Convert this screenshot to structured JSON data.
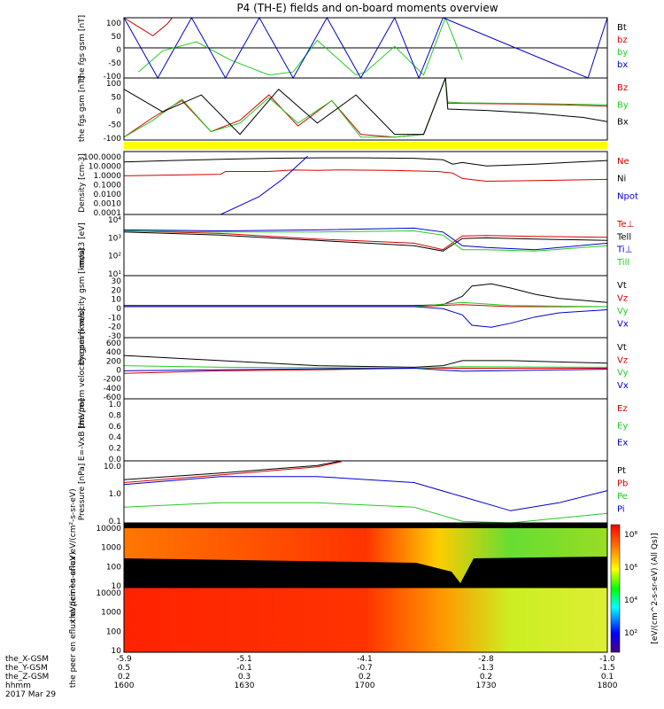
{
  "title": "P4 (TH-E) fields and on-board moments overview",
  "colors": {
    "black": "#000000",
    "red": "#d40000",
    "green": "#22cc22",
    "blue": "#0000cc",
    "yellow": "#ffff00"
  },
  "chart_data": [
    {
      "type": "line",
      "ylabel": "the fgs gsm [nT]",
      "ylim": [
        -100,
        100
      ],
      "yticks": [
        "100",
        "50",
        "0",
        "-50",
        "-100"
      ],
      "series": [
        {
          "name": "Bt",
          "color": "black",
          "x": [
            0,
            1
          ],
          "values": [
            0,
            0
          ]
        },
        {
          "name": "bz",
          "color": "red",
          "x": [
            0,
            0.02,
            0.04,
            0.06,
            0.09,
            0.1
          ],
          "values": [
            100,
            80,
            60,
            40,
            80,
            100
          ]
        },
        {
          "name": "by",
          "color": "green",
          "x": [
            0.03,
            0.08,
            0.15,
            0.22,
            0.3,
            0.35,
            0.4,
            0.48,
            0.5,
            0.56,
            0.62,
            0.665,
            0.7
          ],
          "values": [
            -80,
            -10,
            20,
            -40,
            -90,
            -80,
            25,
            -90,
            -80,
            5,
            -90,
            100,
            -40
          ]
        },
        {
          "name": "bx",
          "color": "blue",
          "x": [
            0,
            0.07,
            0.14,
            0.21,
            0.28,
            0.35,
            0.42,
            0.49,
            0.56,
            0.61,
            0.66,
            0.96,
            1.0
          ],
          "values": [
            100,
            -100,
            100,
            -100,
            100,
            -100,
            100,
            -100,
            100,
            -100,
            100,
            -100,
            100
          ]
        }
      ]
    },
    {
      "type": "line",
      "ylabel": "the fgs gsm [nT]",
      "ylim": [
        -120,
        100
      ],
      "yticks": [
        "100",
        "50",
        "0",
        "-50",
        "-100"
      ],
      "series": [
        {
          "name": "Bz",
          "color": "red",
          "x": [
            0,
            0.06,
            0.12,
            0.18,
            0.24,
            0.3,
            0.36,
            0.43,
            0.49,
            0.56,
            0.62,
            0.665,
            0.67,
            0.7,
            0.8,
            0.9,
            1.0
          ],
          "values": [
            -110,
            -40,
            20,
            -90,
            -50,
            40,
            -70,
            20,
            -100,
            -110,
            -100,
            100,
            10,
            10,
            8,
            5,
            0
          ]
        },
        {
          "name": "By",
          "color": "green",
          "x": [
            0,
            0.06,
            0.12,
            0.18,
            0.24,
            0.3,
            0.36,
            0.43,
            0.49,
            0.56,
            0.62,
            0.665,
            0.67,
            0.7,
            0.8,
            0.9,
            1.0
          ],
          "values": [
            -110,
            -50,
            25,
            -90,
            -60,
            30,
            -60,
            20,
            -110,
            -110,
            -100,
            100,
            15,
            12,
            10,
            8,
            5
          ]
        },
        {
          "name": "Bx",
          "color": "black",
          "x": [
            0,
            0.08,
            0.16,
            0.24,
            0.32,
            0.4,
            0.48,
            0.56,
            0.62,
            0.665,
            0.67,
            0.75,
            0.85,
            0.95,
            1.0
          ],
          "values": [
            60,
            -20,
            40,
            -100,
            60,
            -60,
            40,
            -100,
            -100,
            100,
            -10,
            -15,
            -25,
            -40,
            -55
          ]
        }
      ]
    },
    {
      "type": "line",
      "ylabel": "Density [cm-3]",
      "scale": "log",
      "ylim": [
        0.0001,
        1000
      ],
      "yticks": [
        "100.0000",
        "10.0000",
        "1.0000",
        "0.1000",
        "0.0100",
        "0.0010",
        "0.0001"
      ],
      "series": [
        {
          "name": "Ne",
          "color": "red",
          "x": [
            0,
            0.2,
            0.21,
            0.3,
            0.35,
            0.4,
            0.45,
            0.55,
            0.65,
            0.68,
            0.7,
            0.75,
            0.85,
            1.0
          ],
          "values": [
            2,
            3,
            6,
            6,
            9,
            8,
            9,
            8,
            6,
            4,
            1,
            0.5,
            0.6,
            0.8
          ]
        },
        {
          "name": "Ni",
          "color": "black",
          "x": [
            0,
            0.1,
            0.2,
            0.3,
            0.4,
            0.5,
            0.6,
            0.66,
            0.68,
            0.7,
            0.75,
            0.85,
            1.0
          ],
          "values": [
            70,
            100,
            140,
            180,
            200,
            200,
            180,
            120,
            40,
            60,
            25,
            40,
            100
          ]
        },
        {
          "name": "Npot",
          "color": "blue",
          "x": [
            0,
            0.15,
            0.2,
            0.28,
            0.33,
            0.38
          ],
          "values": [
            0.0001,
            0.0001,
            0.0001,
            0.01,
            1,
            300
          ]
        }
      ]
    },
    {
      "type": "line",
      "ylabel": "moat3 [eV]",
      "scale": "log",
      "ylim": [
        10,
        30000
      ],
      "yticks": [
        "10⁴",
        "10³",
        "10²",
        "10¹"
      ],
      "series": [
        {
          "name": "Te⊥",
          "color": "red",
          "x": [
            0,
            0.2,
            0.4,
            0.6,
            0.66,
            0.7,
            0.75,
            0.85,
            1.0
          ],
          "values": [
            3500,
            2500,
            1200,
            700,
            300,
            1800,
            1900,
            1700,
            1500
          ]
        },
        {
          "name": "Tell",
          "color": "black",
          "x": [
            0,
            0.2,
            0.4,
            0.6,
            0.66,
            0.7,
            0.75,
            0.85,
            1.0
          ],
          "values": [
            3000,
            2000,
            1000,
            500,
            250,
            1300,
            1400,
            1200,
            1000
          ]
        },
        {
          "name": "Ti⊥",
          "color": "blue",
          "x": [
            0,
            0.2,
            0.4,
            0.6,
            0.66,
            0.7,
            0.75,
            0.85,
            1.0
          ],
          "values": [
            4000,
            3500,
            4000,
            5000,
            3000,
            500,
            400,
            300,
            700
          ]
        },
        {
          "name": "Till",
          "color": "green",
          "x": [
            0,
            0.2,
            0.4,
            0.6,
            0.66,
            0.7,
            0.75,
            0.85,
            1.0
          ],
          "values": [
            3500,
            3000,
            3000,
            3500,
            2000,
            300,
            300,
            250,
            500
          ]
        }
      ]
    },
    {
      "type": "line",
      "ylabel": "the peim velocity gsm [km/s]",
      "ylim": [
        -30,
        30
      ],
      "yticks": [
        "30",
        "20",
        "10",
        "0",
        "-10",
        "-20",
        "-30"
      ],
      "series": [
        {
          "name": "Vt",
          "color": "black",
          "x": [
            0,
            0.6,
            0.66,
            0.7,
            0.72,
            0.76,
            0.8,
            0.85,
            0.9,
            1.0
          ],
          "values": [
            1,
            1,
            2,
            10,
            20,
            22,
            18,
            12,
            8,
            4
          ]
        },
        {
          "name": "Vz",
          "color": "red",
          "x": [
            0,
            0.6,
            0.7,
            0.8,
            1.0
          ],
          "values": [
            0,
            0,
            2,
            0,
            0
          ]
        },
        {
          "name": "Vy",
          "color": "green",
          "x": [
            0,
            0.6,
            0.7,
            0.8,
            1.0
          ],
          "values": [
            0,
            0,
            4,
            1,
            0
          ]
        },
        {
          "name": "Vx",
          "color": "blue",
          "x": [
            0,
            0.6,
            0.66,
            0.7,
            0.72,
            0.76,
            0.8,
            0.85,
            0.9,
            1.0
          ],
          "values": [
            0,
            0,
            -2,
            -8,
            -18,
            -20,
            -16,
            -10,
            -6,
            -3
          ]
        }
      ]
    },
    {
      "type": "line",
      "ylabel": "the peem velocity gsm [km/s]",
      "ylim": [
        -600,
        600
      ],
      "yticks": [
        "600",
        "400",
        "200",
        "0",
        "-200",
        "-400",
        "-600"
      ],
      "series": [
        {
          "name": "Vt",
          "color": "black",
          "x": [
            0,
            0.2,
            0.4,
            0.6,
            0.66,
            0.7,
            0.8,
            1.0
          ],
          "values": [
            250,
            150,
            50,
            20,
            50,
            150,
            150,
            100
          ]
        },
        {
          "name": "Vz",
          "color": "red",
          "x": [
            0,
            0.2,
            0.4,
            0.6,
            0.7,
            1.0
          ],
          "values": [
            -100,
            -50,
            -30,
            0,
            0,
            0
          ]
        },
        {
          "name": "Vy",
          "color": "green",
          "x": [
            0,
            0.2,
            0.4,
            0.6,
            0.7,
            1.0
          ],
          "values": [
            50,
            20,
            10,
            0,
            30,
            20
          ]
        },
        {
          "name": "Vx",
          "color": "blue",
          "x": [
            0,
            0.2,
            0.4,
            0.6,
            0.7,
            1.0
          ],
          "values": [
            -50,
            -30,
            -10,
            0,
            -60,
            -20
          ]
        }
      ]
    },
    {
      "type": "line",
      "ylabel": "E=-VxB [mV/m]",
      "ylim": [
        0,
        1
      ],
      "yticks": [
        "1.0",
        "0.8",
        "0.6",
        "0.4",
        "0.2",
        "0.0"
      ],
      "series": [
        {
          "name": "Ez",
          "color": "red",
          "x": [],
          "values": []
        },
        {
          "name": "Ey",
          "color": "green",
          "x": [],
          "values": []
        },
        {
          "name": "Ex",
          "color": "blue",
          "x": [],
          "values": []
        }
      ]
    },
    {
      "type": "line",
      "ylabel": "Pressure [nPa]",
      "scale": "log",
      "ylim": [
        0.05,
        60
      ],
      "yticks": [
        "10.0",
        "1.0",
        "0.1"
      ],
      "series": [
        {
          "name": "Pt",
          "color": "black",
          "x": [
            0,
            0.2,
            0.4,
            0.45
          ],
          "values": [
            7,
            15,
            35,
            60
          ]
        },
        {
          "name": "Pb",
          "color": "red",
          "x": [
            0,
            0.2,
            0.4,
            0.45
          ],
          "values": [
            5,
            12,
            30,
            55
          ]
        },
        {
          "name": "Pe",
          "color": "green",
          "x": [
            0,
            0.2,
            0.4,
            0.6,
            0.7,
            0.8,
            1.0
          ],
          "values": [
            0.3,
            0.5,
            0.5,
            0.3,
            0.06,
            0.05,
            0.15
          ]
        },
        {
          "name": "Pi",
          "color": "blue",
          "x": [
            0,
            0.2,
            0.4,
            0.6,
            0.7,
            0.8,
            0.9,
            1.0
          ],
          "values": [
            4,
            10,
            10,
            5,
            1,
            0.2,
            0.5,
            2
          ]
        }
      ]
    },
    {
      "type": "heatmap",
      "ylabel": "the peir en eflux eV/(cm²-s-sr-eV)",
      "scale": "log",
      "ylim": [
        5,
        40000
      ],
      "yticks": [
        "10000",
        "1000",
        "100",
        "10"
      ],
      "colorscale": "eV/(cm^2-s-sr-eV) (All Qs)"
    },
    {
      "type": "heatmap",
      "ylabel": "the peer en eflux eV/(cm²-s-sr-eV)",
      "scale": "log",
      "ylim": [
        5,
        40000
      ],
      "yticks": [
        "10000",
        "1000",
        "100",
        "10"
      ]
    }
  ],
  "x_axis": {
    "rows": [
      {
        "label": "the_X-GSM",
        "values": [
          "-5.9",
          "-5.1",
          "-4.1",
          "-2.8",
          "-1.0"
        ]
      },
      {
        "label": "the_Y-GSM",
        "values": [
          "0.5",
          "-0.1",
          "-0.7",
          "-1.3",
          "-1.5"
        ]
      },
      {
        "label": "the_Z-GSM",
        "values": [
          "0.2",
          "0.3",
          "0.2",
          "0.2",
          "0.1"
        ]
      },
      {
        "label": "hhmm",
        "values": [
          "1600",
          "1630",
          "1700",
          "1730",
          "1800"
        ]
      }
    ],
    "date": "2017 Mar 29"
  },
  "colorbar": {
    "label": "[eV/(cm^2-s-sr-eV) (All Qs)]",
    "ticks": [
      "10⁸",
      "10⁶",
      "10⁴",
      "10²"
    ]
  }
}
